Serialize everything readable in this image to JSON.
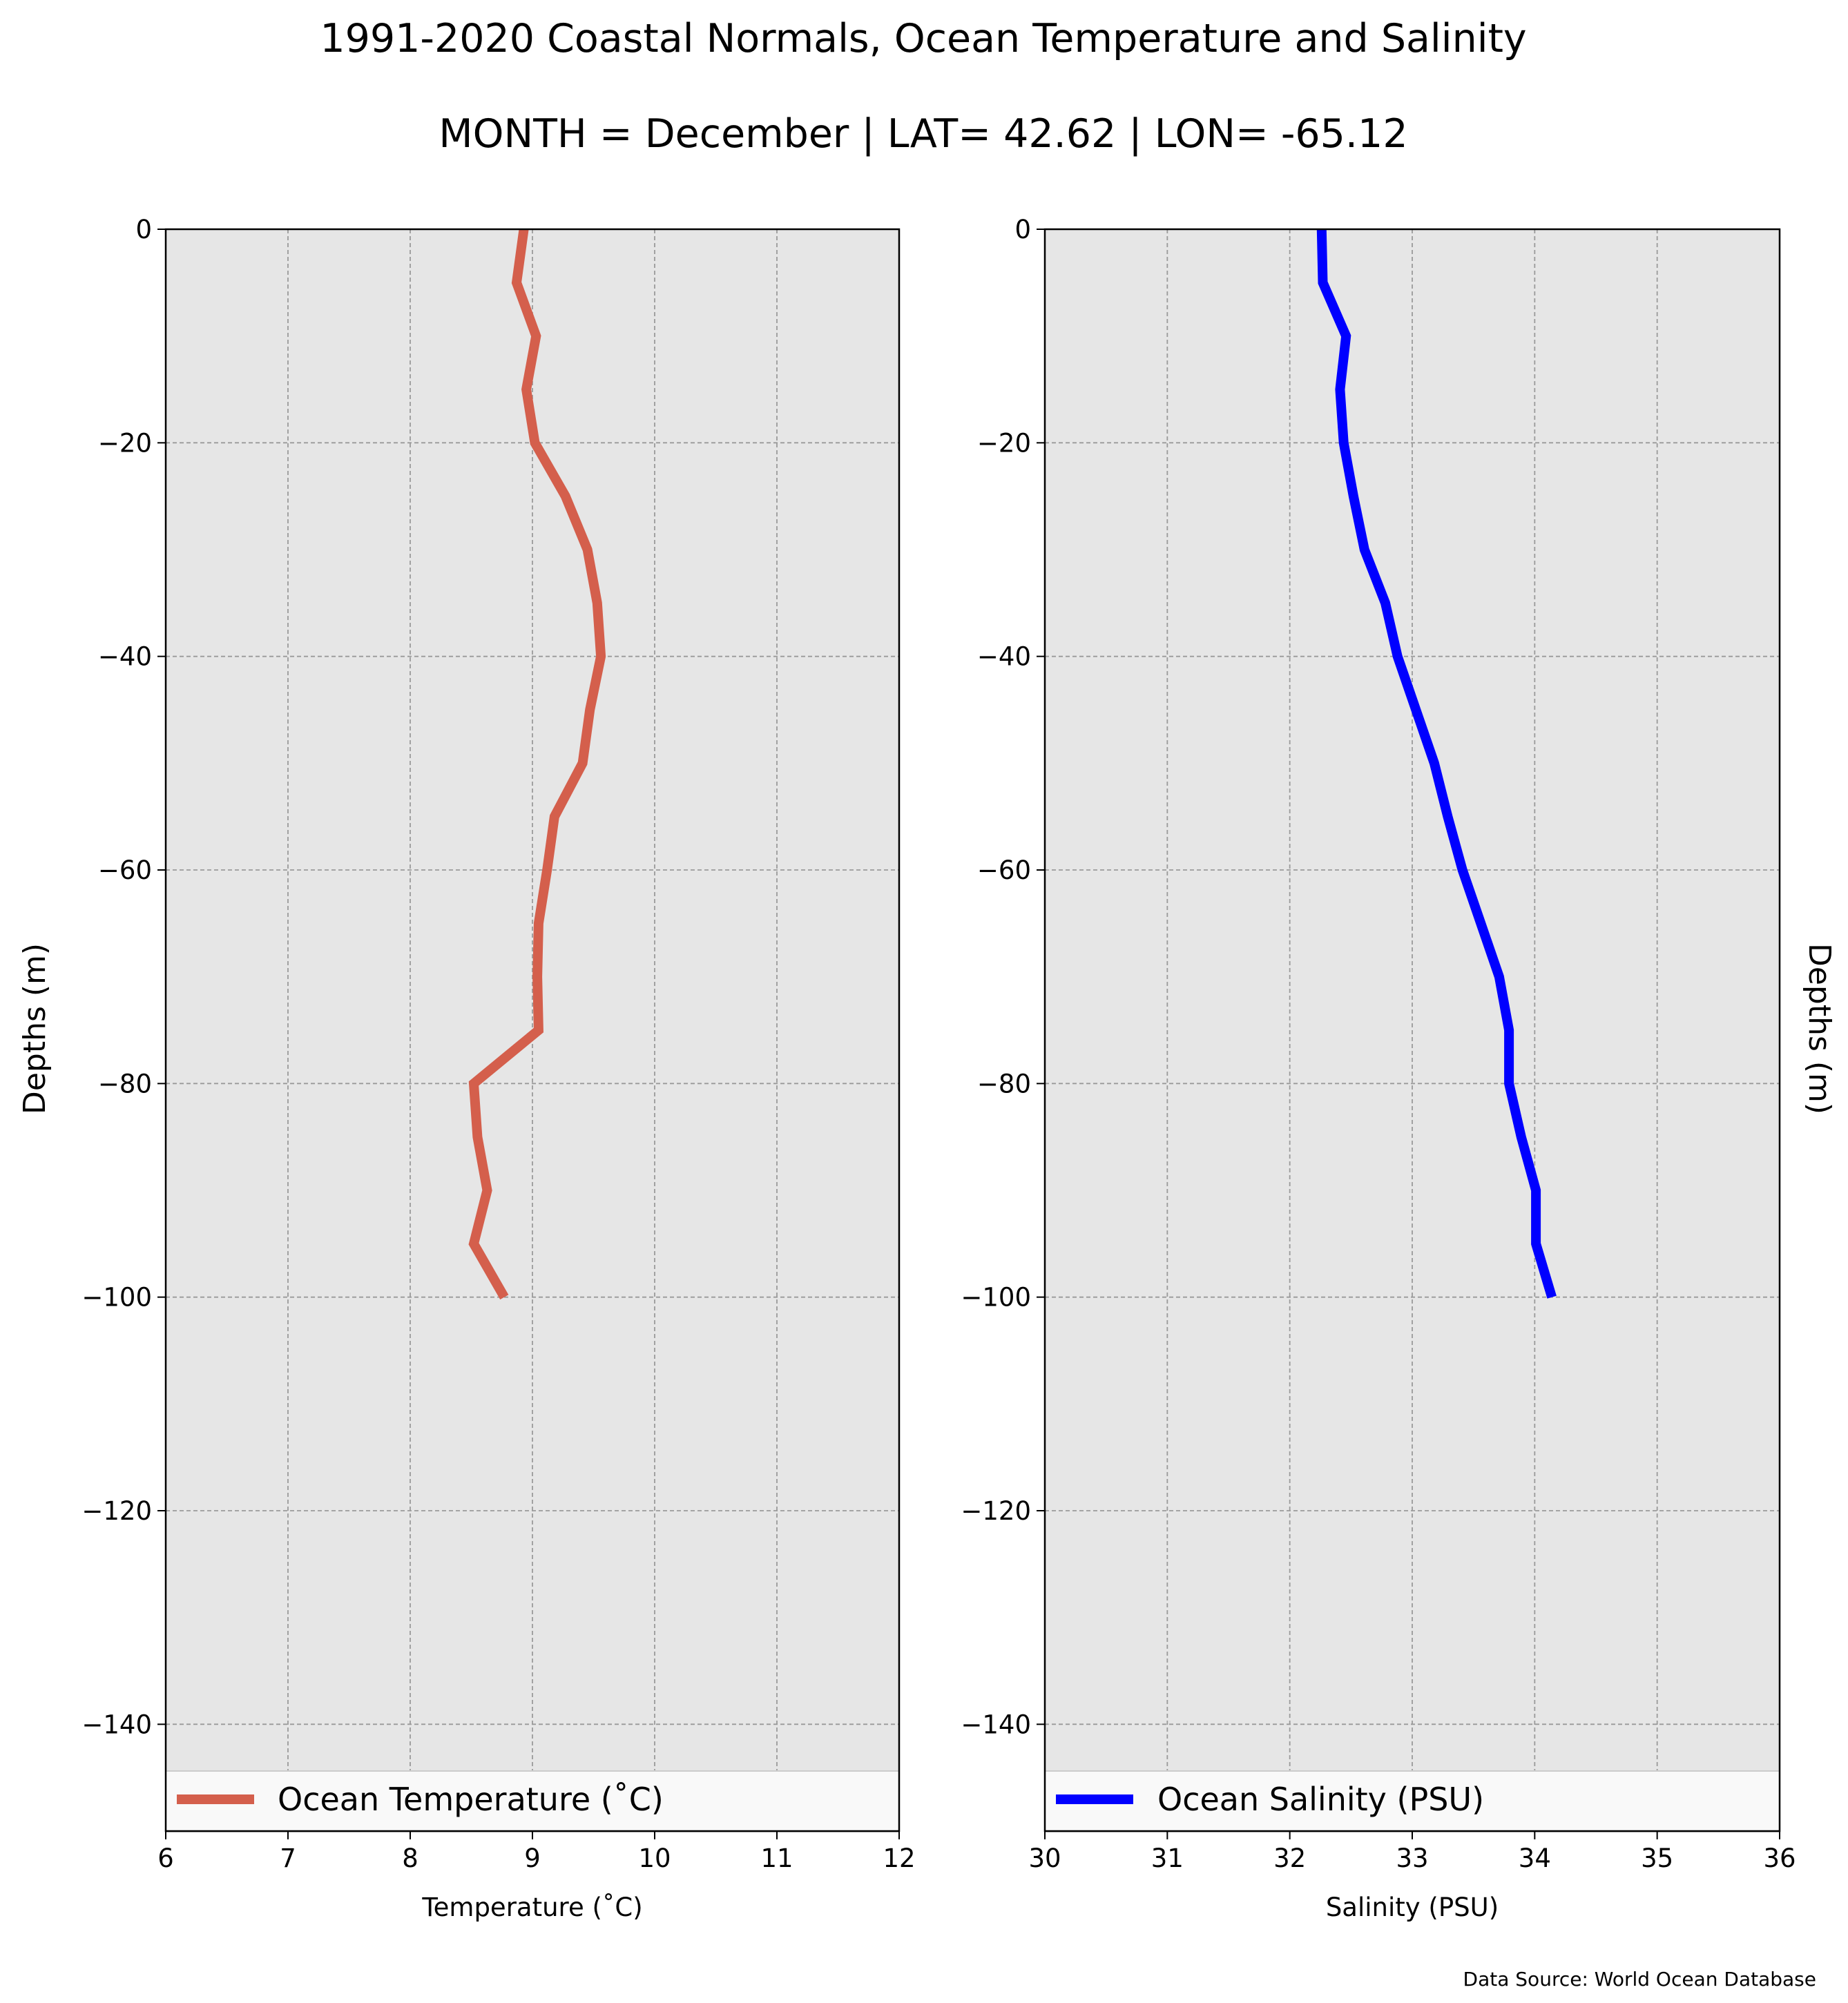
{
  "figure": {
    "title": "1991-2020 Coastal Normals, Ocean Temperature and Salinity",
    "subtitle": "MONTH = December | LAT= 42.62 | LON= -65.12",
    "source_note": "Data Source: World Ocean Database",
    "panel_background": "#e6e6e6"
  },
  "chart_data": [
    {
      "type": "line",
      "xlabel": "Temperature ($^\\circ$C)",
      "xlabel_display": "Temperature (˚C)",
      "ylabel": "Depths (m)",
      "xlim": [
        6,
        12
      ],
      "ylim": [
        -150,
        0
      ],
      "xticks": [
        6,
        7,
        8,
        9,
        10,
        11,
        12
      ],
      "yticks": [
        0,
        -20,
        -40,
        -60,
        -80,
        -100,
        -120,
        -140
      ],
      "ytick_labels": [
        "0",
        "−20",
        "−40",
        "−60",
        "−80",
        "−100",
        "−120",
        "−140"
      ],
      "grid": true,
      "legend_position": "lower-center",
      "ylabel_side": "left",
      "series": [
        {
          "name": "Ocean Temperature (˚C)",
          "color": "#d45f4c",
          "x": [
            8.93,
            8.87,
            9.03,
            8.95,
            9.02,
            9.27,
            9.45,
            9.53,
            9.56,
            9.47,
            9.41,
            9.18,
            9.12,
            9.05,
            9.04,
            9.05,
            8.52,
            8.55,
            8.63,
            8.52,
            8.77
          ],
          "y": [
            0,
            -5,
            -10,
            -15,
            -20,
            -25,
            -30,
            -35,
            -40,
            -45,
            -50,
            -55,
            -60,
            -65,
            -70,
            -75,
            -80,
            -85,
            -90,
            -95,
            -100
          ]
        }
      ]
    },
    {
      "type": "line",
      "xlabel": "Salinity (PSU)",
      "ylabel": "Depths (m)",
      "xlim": [
        30,
        36
      ],
      "ylim": [
        -150,
        0
      ],
      "xticks": [
        30,
        31,
        32,
        33,
        34,
        35,
        36
      ],
      "yticks": [
        0,
        -20,
        -40,
        -60,
        -80,
        -100,
        -120,
        -140
      ],
      "ytick_labels": [
        "0",
        "−20",
        "−40",
        "−60",
        "−80",
        "−100",
        "−120",
        "−140"
      ],
      "grid": true,
      "legend_position": "lower-center",
      "ylabel_side": "right",
      "series": [
        {
          "name": "Ocean Salinity (PSU)",
          "color": "#0000ff",
          "x": [
            32.26,
            32.27,
            32.46,
            32.41,
            32.44,
            32.52,
            32.61,
            32.78,
            32.88,
            33.03,
            33.18,
            33.29,
            33.41,
            33.56,
            33.71,
            33.79,
            33.79,
            33.89,
            34.01,
            34.01,
            34.14
          ],
          "y": [
            0,
            -5,
            -10,
            -15,
            -20,
            -25,
            -30,
            -35,
            -40,
            -45,
            -50,
            -55,
            -60,
            -65,
            -70,
            -75,
            -80,
            -85,
            -90,
            -95,
            -100
          ]
        }
      ]
    }
  ]
}
